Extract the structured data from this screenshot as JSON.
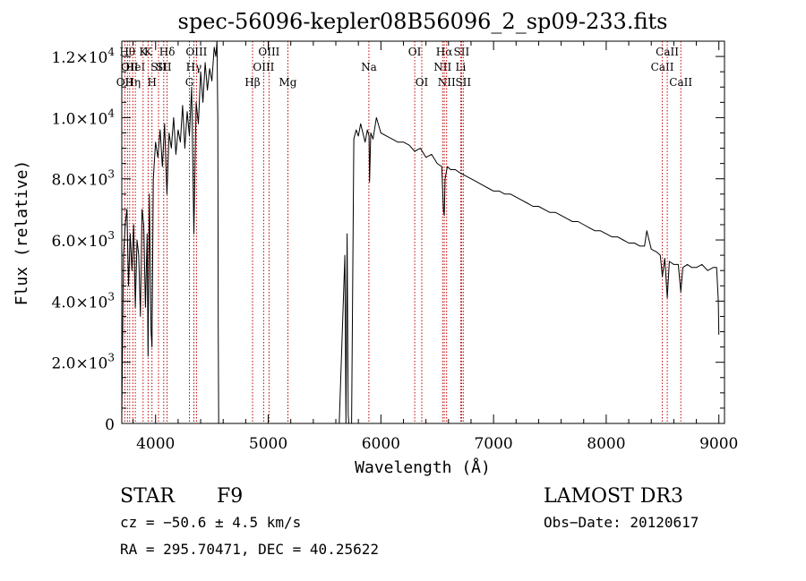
{
  "chart_data": {
    "type": "line",
    "title": "spec-56096-kepler08B56096_2_sp09-233.fits",
    "xlabel": "Wavelength (Å)",
    "ylabel": "Flux (relative)",
    "xlim": [
      3700,
      9050
    ],
    "ylim": [
      0,
      12500
    ],
    "x_ticks": [
      {
        "value": 4000,
        "label": "4000"
      },
      {
        "value": 5000,
        "label": "5000"
      },
      {
        "value": 6000,
        "label": "6000"
      },
      {
        "value": 7000,
        "label": "7000"
      },
      {
        "value": 8000,
        "label": "8000"
      },
      {
        "value": 9000,
        "label": "9000"
      }
    ],
    "y_ticks": [
      {
        "value": 0,
        "mantissa": "0",
        "exponent": ""
      },
      {
        "value": 2000,
        "mantissa": "2.0×10",
        "exponent": "3"
      },
      {
        "value": 4000,
        "mantissa": "4.0×10",
        "exponent": "3"
      },
      {
        "value": 6000,
        "mantissa": "6.0×10",
        "exponent": "3"
      },
      {
        "value": 8000,
        "mantissa": "8.0×10",
        "exponent": "3"
      },
      {
        "value": 10000,
        "mantissa": "1.0×10",
        "exponent": "4"
      },
      {
        "value": 12000,
        "mantissa": "1.2×10",
        "exponent": "4"
      }
    ],
    "series": [
      {
        "name": "spectrum",
        "x": [
          3700,
          3715,
          3730,
          3745,
          3760,
          3775,
          3790,
          3805,
          3820,
          3835,
          3850,
          3865,
          3880,
          3895,
          3910,
          3925,
          3933,
          3945,
          3960,
          3968,
          3980,
          4000,
          4020,
          4040,
          4060,
          4080,
          4101,
          4120,
          4140,
          4160,
          4180,
          4200,
          4220,
          4240,
          4260,
          4280,
          4300,
          4320,
          4340,
          4360,
          4380,
          4400,
          4420,
          4440,
          4460,
          4480,
          4500,
          4520,
          4535,
          4545,
          4552,
          4556,
          4560,
          5630,
          5680,
          5690,
          5700,
          5710,
          5715,
          5720,
          5730,
          5740,
          5760,
          5780,
          5800,
          5820,
          5840,
          5860,
          5880,
          5895,
          5900,
          5910,
          5930,
          5960,
          6000,
          6050,
          6100,
          6150,
          6200,
          6250,
          6300,
          6350,
          6400,
          6450,
          6500,
          6540,
          6555,
          6563,
          6570,
          6590,
          6620,
          6660,
          6700,
          6750,
          6800,
          6850,
          6900,
          6950,
          7000,
          7050,
          7100,
          7150,
          7200,
          7250,
          7300,
          7350,
          7400,
          7450,
          7500,
          7550,
          7600,
          7650,
          7700,
          7750,
          7800,
          7850,
          7900,
          7950,
          8000,
          8050,
          8100,
          8150,
          8200,
          8250,
          8300,
          8340,
          8360,
          8400,
          8450,
          8480,
          8498,
          8520,
          8542,
          8560,
          8600,
          8640,
          8662,
          8680,
          8720,
          8760,
          8800,
          8850,
          8900,
          8950,
          8980,
          8995,
          9000
        ],
        "values": [
          200,
          5500,
          6500,
          7000,
          4500,
          6200,
          5000,
          6500,
          3800,
          6000,
          5500,
          3500,
          7000,
          6500,
          3800,
          6200,
          2200,
          7500,
          3000,
          2500,
          8000,
          9200,
          8700,
          9600,
          8400,
          9800,
          7500,
          9500,
          9000,
          10000,
          8800,
          9600,
          9200,
          10400,
          9000,
          10200,
          9400,
          11000,
          6200,
          10500,
          9800,
          11500,
          10500,
          11800,
          10900,
          11600,
          11200,
          12300,
          12000,
          12500,
          10000,
          3000,
          0,
          0,
          5500,
          0,
          6200,
          300,
          0,
          0,
          0,
          0,
          9300,
          9600,
          9400,
          9800,
          9500,
          9200,
          9600,
          9400,
          7900,
          9500,
          9300,
          10000,
          9500,
          9400,
          9300,
          9200,
          9200,
          9100,
          8900,
          9000,
          8700,
          8800,
          8500,
          8400,
          7000,
          6800,
          8000,
          8400,
          8300,
          8300,
          8200,
          8100,
          8000,
          7900,
          7800,
          7700,
          7600,
          7600,
          7500,
          7500,
          7400,
          7300,
          7200,
          7100,
          7100,
          7000,
          6900,
          6900,
          6800,
          6700,
          6600,
          6600,
          6500,
          6400,
          6300,
          6300,
          6200,
          6100,
          6100,
          6000,
          5900,
          5900,
          5800,
          5800,
          6300,
          5700,
          5600,
          5500,
          4800,
          5400,
          4100,
          5300,
          5200,
          5200,
          4300,
          5100,
          5200,
          5100,
          5100,
          5200,
          5000,
          5100,
          5100,
          4000,
          2900
        ]
      }
    ],
    "line_markers": [
      {
        "wavelength": 3727,
        "label": "OII",
        "row": 3
      },
      {
        "wavelength": 3750,
        "label": "Hθ",
        "row": 1
      },
      {
        "wavelength": 3770,
        "label": "OII",
        "row": 2
      },
      {
        "wavelength": 3798,
        "label": "Hη",
        "row": 3
      },
      {
        "wavelength": 3820,
        "label": "HeI",
        "row": 2
      },
      {
        "wavelength": 3889,
        "label": "K",
        "row": 1
      },
      {
        "wavelength": 3934,
        "label": "K",
        "row": 1
      },
      {
        "wavelength": 3968,
        "label": "H",
        "row": 3
      },
      {
        "wavelength": 4026,
        "label": "SII",
        "row": 2
      },
      {
        "wavelength": 4072,
        "label": "SII",
        "row": 2
      },
      {
        "wavelength": 4102,
        "label": "Hδ",
        "row": 1
      },
      {
        "wavelength": 4300,
        "label": "G",
        "row": 3
      },
      {
        "wavelength": 4340,
        "label": "Hγ",
        "row": 2
      },
      {
        "wavelength": 4363,
        "label": "OIII",
        "row": 1
      },
      {
        "wavelength": 4861,
        "label": "Hβ",
        "row": 3
      },
      {
        "wavelength": 4959,
        "label": "OIII",
        "row": 2
      },
      {
        "wavelength": 5007,
        "label": "OIII",
        "row": 1
      },
      {
        "wavelength": 5175,
        "label": "Mg",
        "row": 3
      },
      {
        "wavelength": 5893,
        "label": "Na",
        "row": 2
      },
      {
        "wavelength": 6300,
        "label": "OI",
        "row": 1
      },
      {
        "wavelength": 6363,
        "label": "OI",
        "row": 3
      },
      {
        "wavelength": 6548,
        "label": "NII",
        "row": 2
      },
      {
        "wavelength": 6563,
        "label": "Hα",
        "row": 1
      },
      {
        "wavelength": 6583,
        "label": "NII",
        "row": 3
      },
      {
        "wavelength": 6708,
        "label": "Li",
        "row": 2
      },
      {
        "wavelength": 6716,
        "label": "SII",
        "row": 1
      },
      {
        "wavelength": 6731,
        "label": "SII",
        "row": 3
      },
      {
        "wavelength": 8498,
        "label": "CaII",
        "row": 2
      },
      {
        "wavelength": 8542,
        "label": "CaII",
        "row": 1
      },
      {
        "wavelength": 8662,
        "label": "CaII",
        "row": 3
      }
    ]
  },
  "info": {
    "object_class": "STAR",
    "subclass": "F9",
    "survey": "LAMOST DR3",
    "redshift_text": "cz = −50.6 ± 4.5 km/s",
    "obs_date_text": "Obs−Date: 20120617",
    "coords_text": "RA = 295.70471, DEC =  40.25622"
  },
  "colors": {
    "spectrum": "#000000",
    "line_marker": "#c00000",
    "axis": "#000000",
    "background": "#ffffff"
  }
}
